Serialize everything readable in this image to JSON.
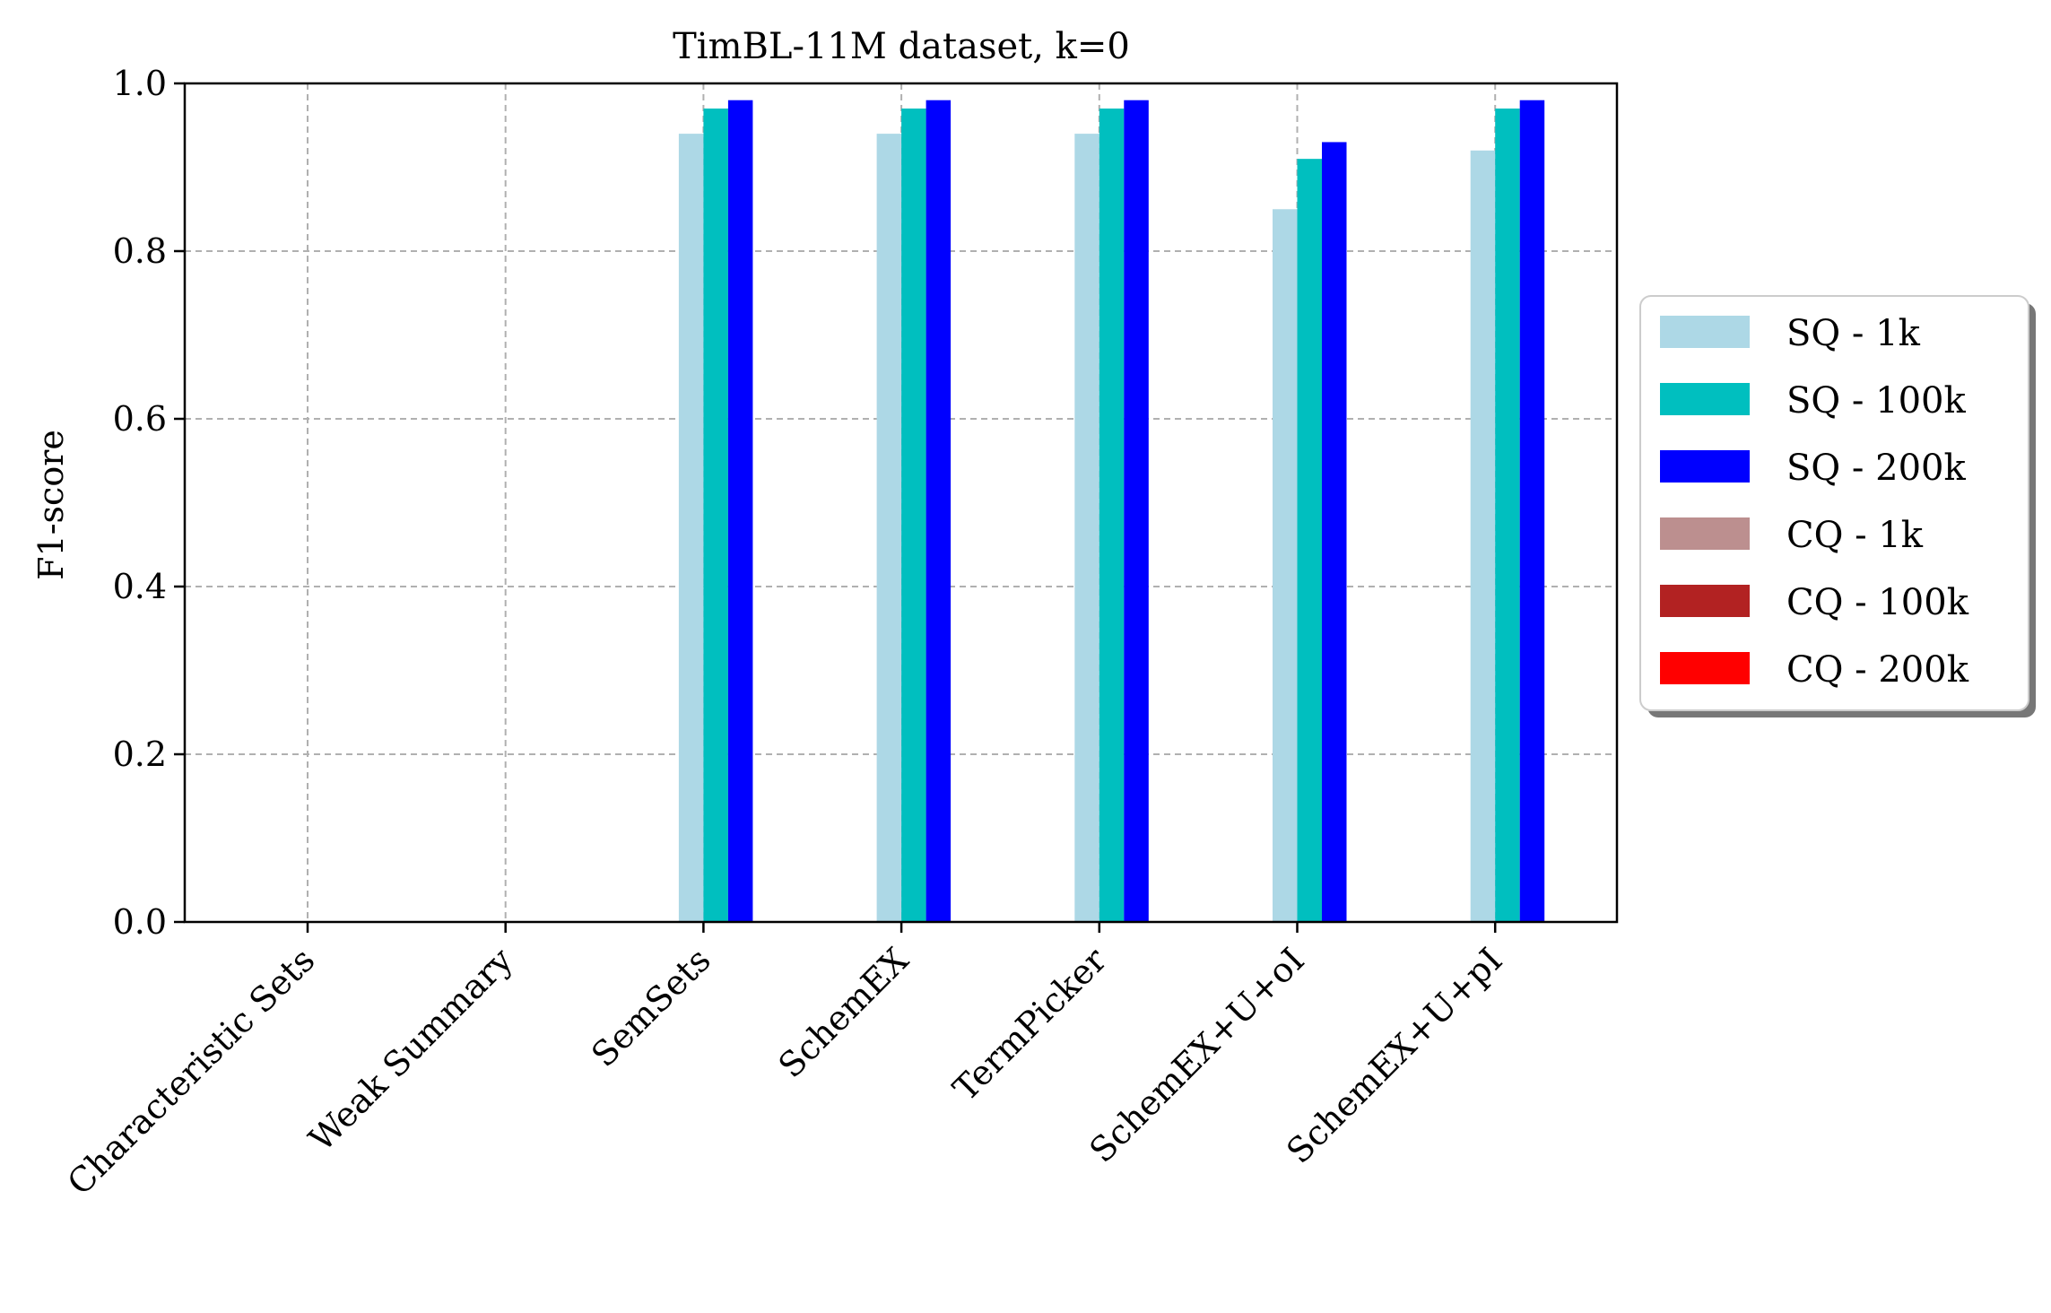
{
  "chart_data": {
    "type": "bar",
    "title": "TimBL-11M dataset, k=0",
    "xlabel": "",
    "ylabel": "F1-score",
    "ylim": [
      0,
      1.0
    ],
    "yticks": [
      "0.0",
      "0.2",
      "0.4",
      "0.6",
      "0.8",
      "1.0"
    ],
    "grid": true,
    "legend_position": "outside-right",
    "categories": [
      "Characteristic Sets",
      "Weak Summary",
      "SemSets",
      "SchemEX",
      "TermPicker",
      "SchemEX+U+oI",
      "SchemEX+U+pI"
    ],
    "series": [
      {
        "name": "SQ - 1k",
        "color": "#add8e6",
        "values": [
          null,
          null,
          0.94,
          0.94,
          0.94,
          0.85,
          0.92
        ]
      },
      {
        "name": "SQ - 100k",
        "color": "#00bfbf",
        "values": [
          null,
          null,
          0.97,
          0.97,
          0.97,
          0.91,
          0.97
        ]
      },
      {
        "name": "SQ - 200k",
        "color": "#0000ff",
        "values": [
          null,
          null,
          0.98,
          0.98,
          0.98,
          0.93,
          0.98
        ]
      },
      {
        "name": "CQ - 1k",
        "color": "#bc8f8f",
        "values": [
          null,
          null,
          null,
          null,
          null,
          null,
          null
        ]
      },
      {
        "name": "CQ - 100k",
        "color": "#b22222",
        "values": [
          null,
          null,
          null,
          null,
          null,
          null,
          null
        ]
      },
      {
        "name": "CQ - 200k",
        "color": "#ff0000",
        "values": [
          null,
          null,
          null,
          null,
          null,
          null,
          null
        ]
      }
    ]
  }
}
